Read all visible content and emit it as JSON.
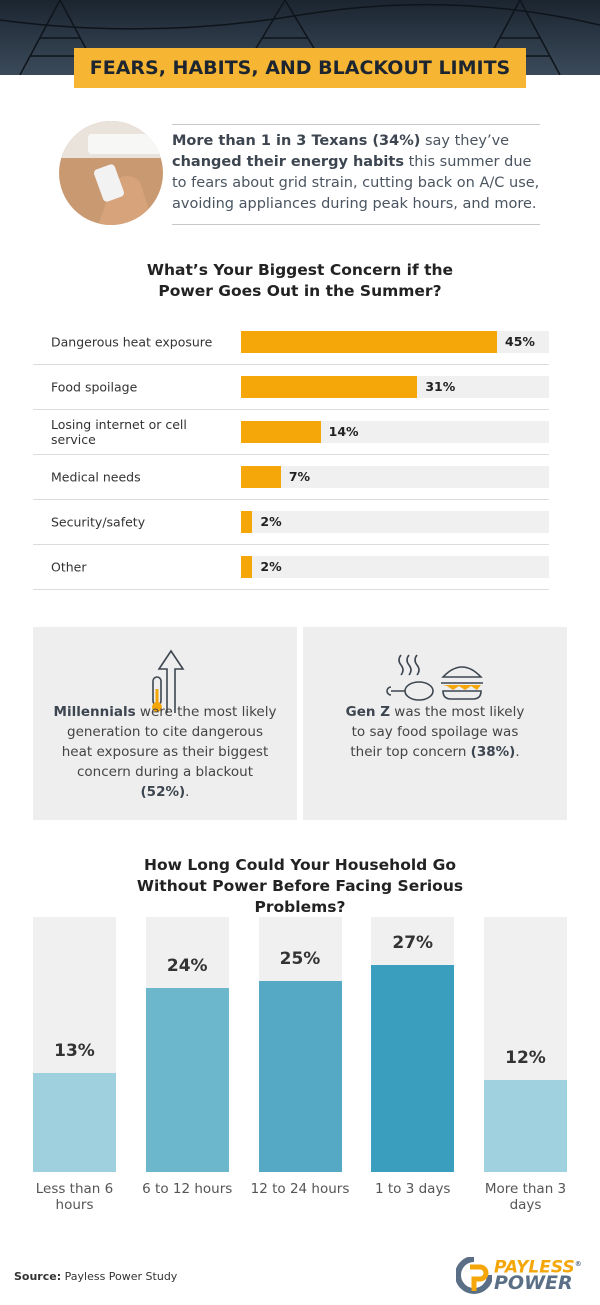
{
  "header": {
    "title": "FEARS, HABITS, AND BLACKOUT LIMITS"
  },
  "intro": {
    "parts": [
      {
        "text": "More than 1 in 3 Texans (34%)",
        "bold": true
      },
      {
        "text": " say they’ve ",
        "bold": false
      },
      {
        "text": "changed their energy habits",
        "bold": true
      },
      {
        "text": " this summer due to fears about grid strain, cutting back on A/C use, avoiding appliances during peak hours, and more.",
        "bold": false
      }
    ]
  },
  "chart_data": [
    {
      "type": "bar",
      "orientation": "horizontal",
      "title": "What’s Your Biggest Concern if the Power Goes Out in the Summer?",
      "categories": [
        "Dangerous heat exposure",
        "Food spoilage",
        "Losing internet or cell service",
        "Medical needs",
        "Security/safety",
        "Other"
      ],
      "values": [
        45,
        31,
        14,
        7,
        2,
        2
      ],
      "value_labels": [
        "45%",
        "31%",
        "14%",
        "7%",
        "2%",
        "2%"
      ],
      "color": "#f5a70a"
    },
    {
      "type": "bar",
      "orientation": "vertical",
      "title": "How Long Could Your Household Go Without Power Before Facing Serious Problems?",
      "categories": [
        "Less than 6 hours",
        "6 to 12 hours",
        "12 to 24 hours",
        "1 to 3 days",
        "More than 3 days"
      ],
      "values": [
        13,
        24,
        25,
        27,
        12
      ],
      "value_labels": [
        "13%",
        "24%",
        "25%",
        "27%",
        "12%"
      ],
      "colors": [
        "#9fd0de",
        "#6cb7cc",
        "#55a9c4",
        "#3a9fbf",
        "#a0d1df"
      ]
    }
  ],
  "cards": [
    {
      "parts": [
        {
          "text": "Millennials",
          "bold": true
        },
        {
          "text": " were the most likely generation to cite dangerous heat exposure as their biggest concern during a blackout ",
          "bold": false
        },
        {
          "text": "(52%)",
          "bold": true
        },
        {
          "text": ".",
          "bold": false
        }
      ]
    },
    {
      "parts": [
        {
          "text": "Gen Z",
          "bold": true
        },
        {
          "text": " was the most likely to say food spoilage was their top concern ",
          "bold": false
        },
        {
          "text": "(38%)",
          "bold": true
        },
        {
          "text": ".",
          "bold": false
        }
      ]
    }
  ],
  "source": {
    "label": "Source:",
    "text": " Payless Power Study"
  },
  "logo": {
    "line1": "PAYLESS",
    "mark": "®",
    "line2": "POWER"
  }
}
